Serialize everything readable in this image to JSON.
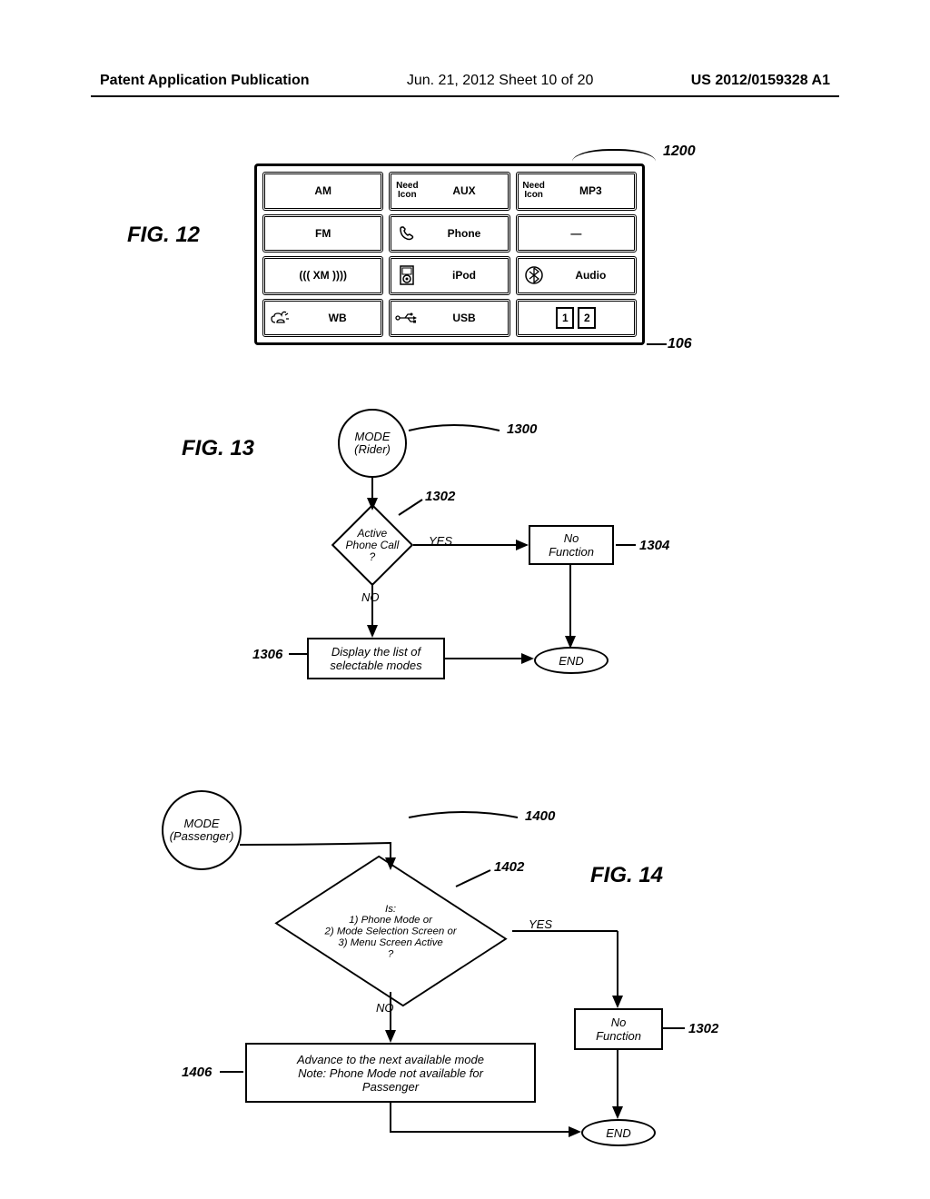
{
  "header": {
    "left": "Patent Application Publication",
    "center": "Jun. 21, 2012  Sheet 10 of 20",
    "right": "US 2012/0159328 A1"
  },
  "fig12": {
    "label": "FIG. 12",
    "ref_top": "1200",
    "ref_bottom": "106",
    "grid": [
      [
        {
          "text": "AM"
        },
        {
          "icon_label": "Need\nIcon",
          "text": "AUX"
        },
        {
          "icon_label": "Need\nIcon",
          "text": "MP3"
        }
      ],
      [
        {
          "text": "FM"
        },
        {
          "icon": "phone",
          "text": "Phone"
        },
        {
          "text": "—"
        }
      ],
      [
        {
          "text": "((( XM ))))"
        },
        {
          "icon": "ipod",
          "text": "iPod"
        },
        {
          "icon": "bt",
          "text": "Audio"
        }
      ],
      [
        {
          "icon": "cloud",
          "text": "WB"
        },
        {
          "icon": "usb",
          "text": "USB"
        },
        {
          "pages": [
            "1",
            "2"
          ]
        }
      ]
    ]
  },
  "fig13": {
    "label": "FIG. 13",
    "start": "MODE\n(Rider)",
    "decision": "Active\nPhone Call\n?",
    "yes": "YES",
    "no": "NO",
    "nofunc": "No\nFunction",
    "display": "Display the list of\nselectable modes",
    "end": "END",
    "ref_1300": "1300",
    "ref_1302": "1302",
    "ref_1304": "1304",
    "ref_1306": "1306"
  },
  "fig14": {
    "label": "FIG. 14",
    "start": "MODE\n(Passenger)",
    "decision": "Is:\n1) Phone Mode or\n2) Mode Selection Screen or\n3) Menu Screen Active\n?",
    "yes": "YES",
    "no": "NO",
    "nofunc": "No\nFunction",
    "advance": "Advance to the next available mode\nNote: Phone Mode not available for\nPassenger",
    "end": "END",
    "ref_1400": "1400",
    "ref_1402": "1402",
    "ref_1302b": "1302",
    "ref_1406": "1406"
  }
}
